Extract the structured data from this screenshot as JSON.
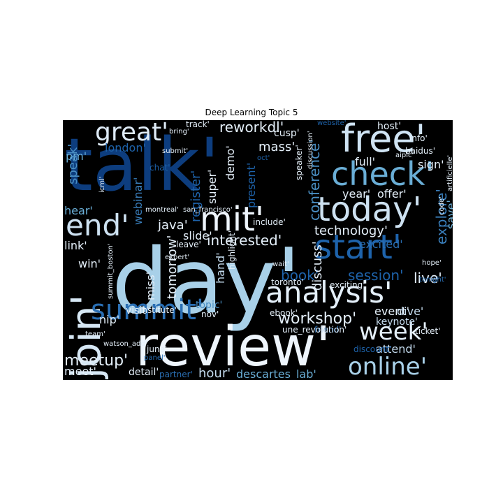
{
  "chart_data": {
    "type": "wordcloud",
    "title": "Deep Learning Topic 5",
    "background": "#000000",
    "colormap": "Blues",
    "words": [
      {
        "text": "talk'",
        "color": "#0d3d7e"
      },
      {
        "text": "day'",
        "color": "#a8d0e8"
      },
      {
        "text": "review'",
        "color": "#eef5fc"
      },
      {
        "text": "free'",
        "color": "#cfe3f3"
      },
      {
        "text": "check'",
        "color": "#6aaed6"
      },
      {
        "text": "today'",
        "color": "#cde1f1"
      },
      {
        "text": "start'",
        "color": "#1e63ab"
      },
      {
        "text": "analysis'",
        "color": "#e4eff9"
      },
      {
        "text": "join'",
        "color": "#d6e7f4"
      },
      {
        "text": "summit'",
        "color": "#2a6fb4"
      },
      {
        "text": "mit'",
        "color": "#eef5fc"
      },
      {
        "text": "end'",
        "color": "#cde1f1"
      },
      {
        "text": "week'",
        "color": "#e4eff9"
      },
      {
        "text": "online'",
        "color": "#a8d0e8"
      },
      {
        "text": "great'",
        "color": "#deebf7"
      },
      {
        "text": "workshop'",
        "color": "#e4eff9"
      },
      {
        "text": "meetup'",
        "color": "#e4eff9"
      },
      {
        "text": "interested'",
        "color": "#e4eff9"
      },
      {
        "text": "technology'",
        "color": "#e4eff9"
      },
      {
        "text": "reworkdl'",
        "color": "#e4eff9"
      },
      {
        "text": "conference'",
        "color": "#4a8fc4"
      },
      {
        "text": "explore'",
        "color": "#3a7fbc"
      },
      {
        "text": "session'",
        "color": "#1e63ab"
      },
      {
        "text": "book'",
        "color": "#1e63ab"
      },
      {
        "text": "live'",
        "color": "#e4eff9"
      },
      {
        "text": "hour'",
        "color": "#c5dcef"
      },
      {
        "text": "descartes_lab'",
        "color": "#6aaed6"
      },
      {
        "text": "event'",
        "color": "#e4eff9"
      },
      {
        "text": "keynote'",
        "color": "#c5dcef"
      },
      {
        "text": "attend'",
        "color": "#c5dcef"
      },
      {
        "text": "dive'",
        "color": "#c5dcef"
      },
      {
        "text": "register'",
        "color": "#1e63ab"
      },
      {
        "text": "webinar'",
        "color": "#3a7fbc"
      },
      {
        "text": "present'",
        "color": "#1e63ab"
      },
      {
        "text": "super'",
        "color": "#e4eff9"
      },
      {
        "text": "demo'",
        "color": "#e4eff9"
      },
      {
        "text": "mass'",
        "color": "#e4eff9"
      },
      {
        "text": "full'",
        "color": "#e4eff9"
      },
      {
        "text": "sign'",
        "color": "#e4eff9"
      },
      {
        "text": "year'",
        "color": "#e4eff9"
      },
      {
        "text": "offer'",
        "color": "#e4eff9"
      },
      {
        "text": "save'",
        "color": "#6aaed6"
      },
      {
        "text": "excited'",
        "color": "#2a6fb4"
      },
      {
        "text": "java'",
        "color": "#e4eff9"
      },
      {
        "text": "slide'",
        "color": "#e4eff9"
      },
      {
        "text": "discuss'",
        "color": "#e4eff9"
      },
      {
        "text": "tomorrow'",
        "color": "#e4eff9"
      },
      {
        "text": "miss'",
        "color": "#e4eff9"
      },
      {
        "text": "hand'",
        "color": "#c5dcef"
      },
      {
        "text": "highlight'",
        "color": "#e4eff9"
      },
      {
        "text": "london'",
        "color": "#1e63ab"
      },
      {
        "text": "pm'",
        "color": "#6aaed6"
      },
      {
        "text": "speak'",
        "color": "#4a8fc4"
      },
      {
        "text": "hear'",
        "color": "#6aaed6"
      },
      {
        "text": "link'",
        "color": "#e4eff9"
      },
      {
        "text": "win'",
        "color": "#e4eff9"
      },
      {
        "text": "nip'",
        "color": "#e4eff9"
      },
      {
        "text": "meet'",
        "color": "#e4eff9"
      },
      {
        "text": "detail'",
        "color": "#e4eff9"
      },
      {
        "text": "visit'",
        "color": "#e4eff9"
      },
      {
        "text": "institute'",
        "color": "#e4eff9"
      },
      {
        "text": "topic'",
        "color": "#4a8fc4"
      },
      {
        "text": "nov'",
        "color": "#e4eff9"
      },
      {
        "text": "toronto'",
        "color": "#e4eff9"
      },
      {
        "text": "ebook'",
        "color": "#e4eff9"
      },
      {
        "text": "friend'",
        "color": "#2a6fb4"
      },
      {
        "text": "ticket'",
        "color": "#e4eff9"
      },
      {
        "text": "une_revolution'",
        "color": "#e4eff9"
      },
      {
        "text": "exciting'",
        "color": "#e4eff9"
      },
      {
        "text": "discount'",
        "color": "#1e63ab"
      },
      {
        "text": "partner'",
        "color": "#2a6fb4"
      },
      {
        "text": "june'",
        "color": "#e4eff9"
      },
      {
        "text": "host'",
        "color": "#e4eff9"
      },
      {
        "text": "cusp'",
        "color": "#e4eff9"
      },
      {
        "text": "track'",
        "color": "#e4eff9"
      },
      {
        "text": "bring'",
        "color": "#e4eff9"
      },
      {
        "text": "website'",
        "color": "#1e63ab"
      },
      {
        "text": "info'",
        "color": "#e4eff9"
      },
      {
        "text": "baidus'",
        "color": "#e4eff9"
      },
      {
        "text": "aipic'",
        "color": "#e4eff9"
      },
      {
        "text": "artificielle'",
        "color": "#e4eff9"
      },
      {
        "text": "code'",
        "color": "#e4eff9"
      },
      {
        "text": "submit'",
        "color": "#e4eff9"
      },
      {
        "text": "chat'",
        "color": "#1e63ab"
      },
      {
        "text": "icml'",
        "color": "#e4eff9"
      },
      {
        "text": "montreal'",
        "color": "#e4eff9"
      },
      {
        "text": "san_francisco'",
        "color": "#e4eff9"
      },
      {
        "text": "include'",
        "color": "#e4eff9"
      },
      {
        "text": "leave'",
        "color": "#e4eff9"
      },
      {
        "text": "speaker'",
        "color": "#e4eff9"
      },
      {
        "text": "discussion'",
        "color": "#e4eff9"
      },
      {
        "text": "oct'",
        "color": "#1e63ab"
      },
      {
        "text": "hope'",
        "color": "#e4eff9"
      },
      {
        "text": "tonight'",
        "color": "#2a6fb4"
      },
      {
        "text": "expert'",
        "color": "#e4eff9"
      },
      {
        "text": "wait'",
        "color": "#e4eff9"
      },
      {
        "text": "summit_boston'",
        "color": "#e4eff9"
      },
      {
        "text": "team'",
        "color": "#e4eff9"
      },
      {
        "text": "watson_add'",
        "color": "#e4eff9"
      },
      {
        "text": "panel'",
        "color": "#2a6fb4"
      }
    ]
  }
}
